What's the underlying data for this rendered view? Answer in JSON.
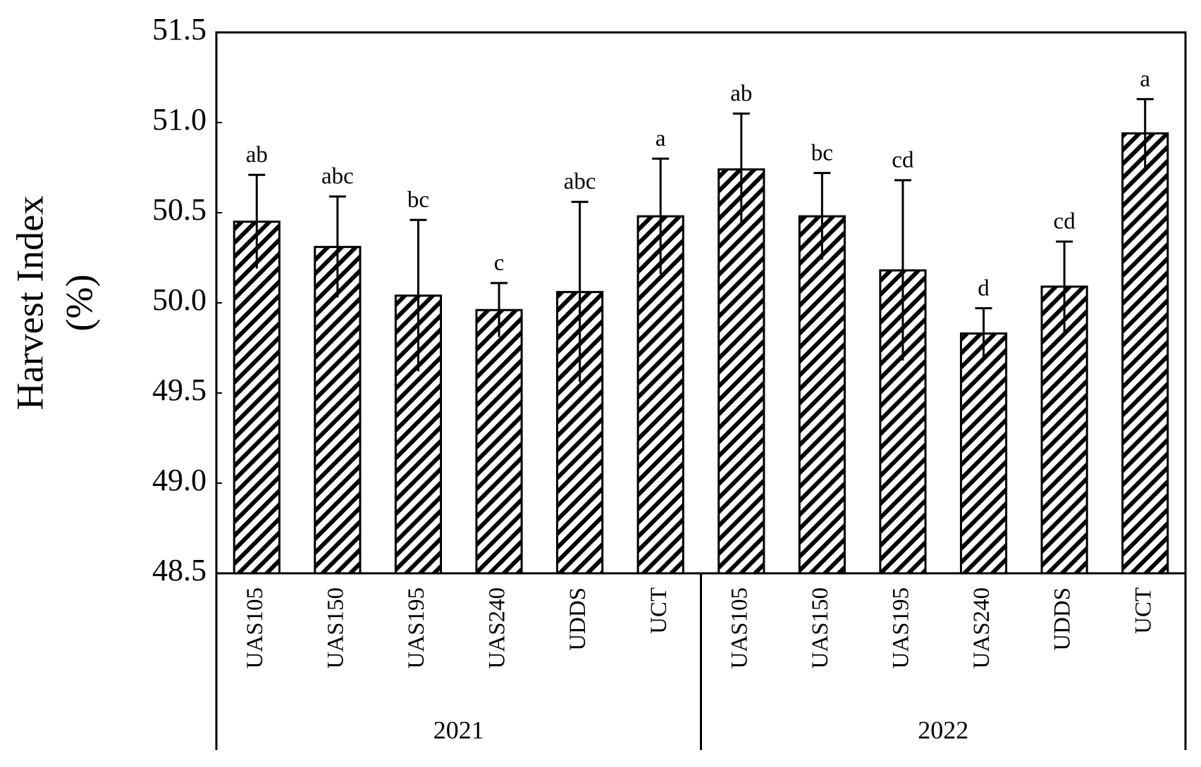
{
  "chart_data": {
    "type": "bar",
    "ylabel": [
      "Harvest Index",
      "(%)"
    ],
    "categories": [
      "UAS105",
      "UAS150",
      "UAS195",
      "UAS240",
      "UDDS",
      "UCT",
      "UAS105",
      "UAS150",
      "UAS195",
      "UAS240",
      "UDDS",
      "UCT"
    ],
    "groups": [
      "2021",
      "2022"
    ],
    "values": [
      50.45,
      50.31,
      50.04,
      49.96,
      50.06,
      50.48,
      50.74,
      50.48,
      50.18,
      49.83,
      50.09,
      50.94
    ],
    "errors": [
      0.26,
      0.28,
      0.42,
      0.15,
      0.5,
      0.32,
      0.31,
      0.24,
      0.5,
      0.14,
      0.25,
      0.19
    ],
    "letters": [
      "ab",
      "abc",
      "bc",
      "c",
      "abc",
      "a",
      "ab",
      "bc",
      "cd",
      "d",
      "cd",
      "a"
    ],
    "color": "#000000",
    "ylim": [
      48.5,
      51.5
    ],
    "yticks": [
      48.5,
      {
        "value": 49,
        "label": "49.0"
      },
      49.5,
      {
        "value": 50,
        "label": "50.0"
      },
      50.5,
      {
        "value": 51,
        "label": "51.0"
      },
      51.5
    ]
  }
}
